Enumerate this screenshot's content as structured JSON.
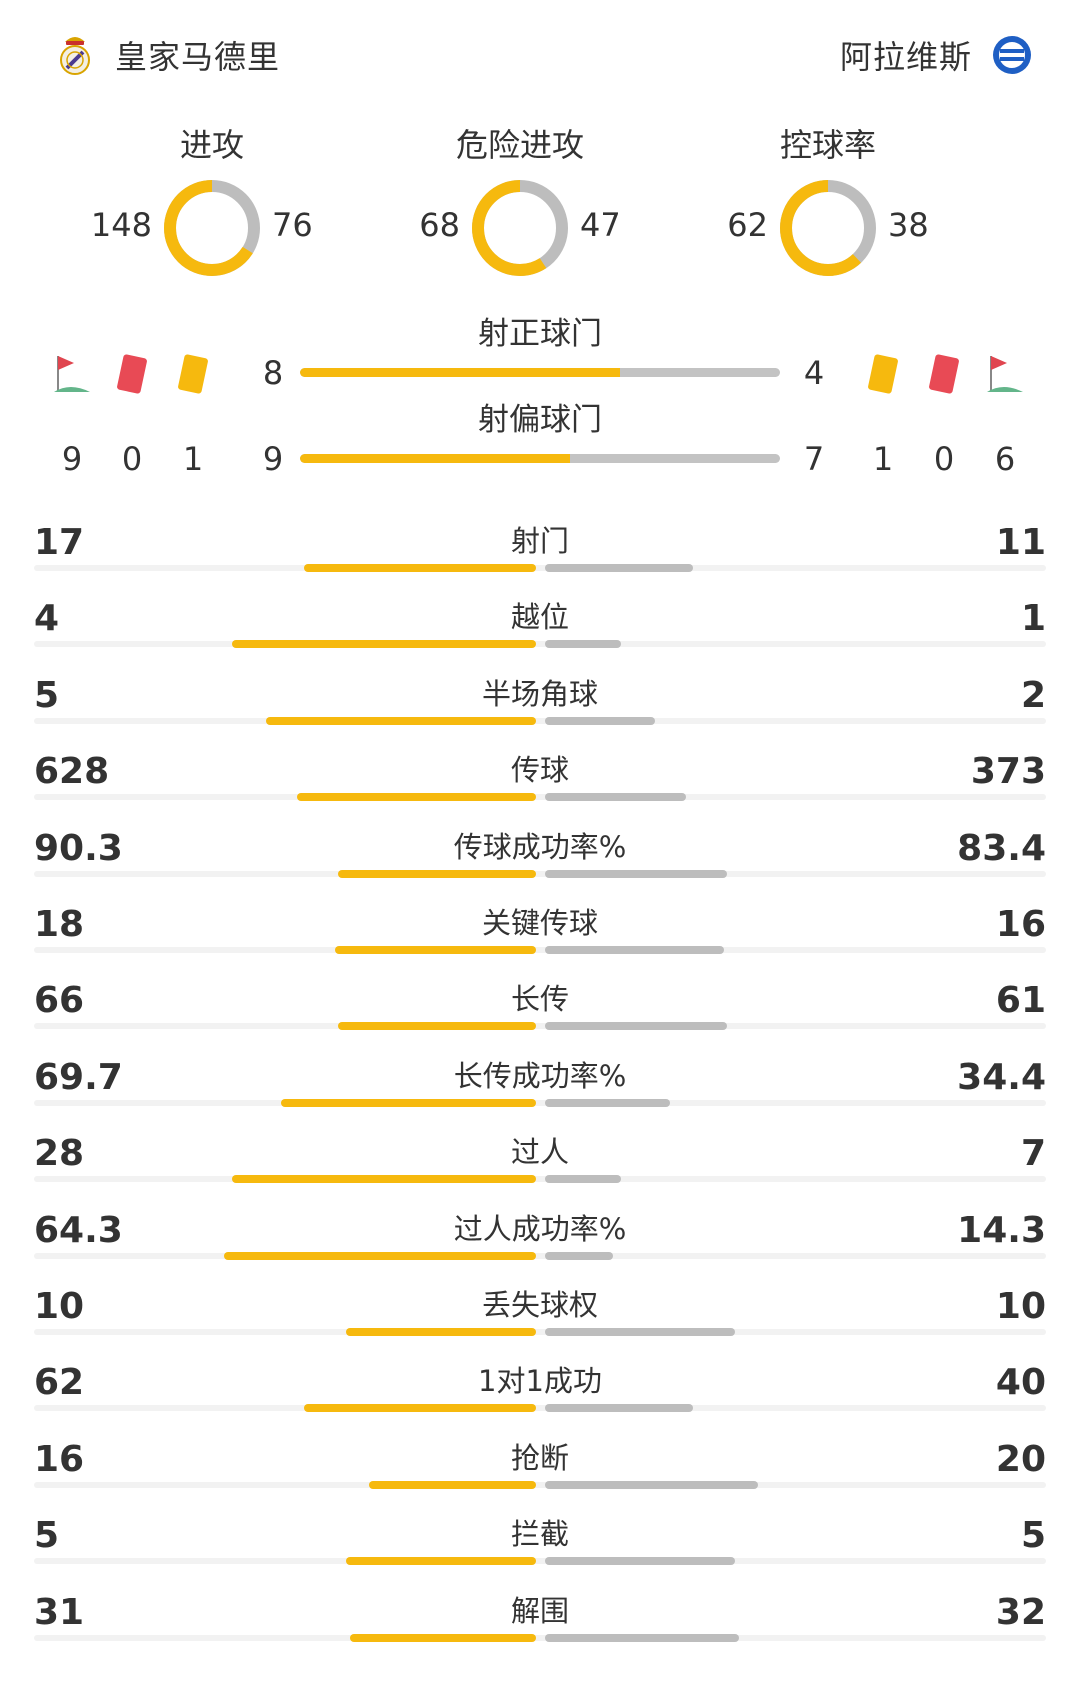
{
  "header": {
    "home_team": {
      "name": "皇家马德里",
      "icon": "real-madrid-crest-icon"
    },
    "away_team": {
      "name": "阿拉维斯",
      "icon": "alaves-crest-icon"
    }
  },
  "colors": {
    "home": "#f6b90e",
    "away": "#bdbdbd",
    "track": "#f2f2f2"
  },
  "rings": [
    {
      "title": "进攻",
      "home": "148",
      "away": "76"
    },
    {
      "title": "危险进攻",
      "home": "68",
      "away": "47"
    },
    {
      "title": "控球率",
      "home": "62",
      "away": "38"
    }
  ],
  "shots": {
    "on_target": {
      "label": "射正球门",
      "home": "8",
      "away": "4"
    },
    "off_target": {
      "label": "射偏球门",
      "home": "9",
      "away": "7"
    }
  },
  "events": {
    "home": [
      {
        "icon": "corner-flag-icon",
        "count": "9"
      },
      {
        "icon": "red-card-icon",
        "count": "0"
      },
      {
        "icon": "yellow-card-icon",
        "count": "1"
      }
    ],
    "away": [
      {
        "icon": "yellow-card-icon",
        "count": "1"
      },
      {
        "icon": "red-card-icon",
        "count": "0"
      },
      {
        "icon": "corner-flag-icon",
        "count": "6"
      }
    ]
  },
  "stats": [
    {
      "label": "射门",
      "home": "17",
      "away": "11",
      "home_share": 0.61,
      "away_share": 0.39
    },
    {
      "label": "越位",
      "home": "4",
      "away": "1",
      "home_share": 0.8,
      "away_share": 0.2
    },
    {
      "label": "半场角球",
      "home": "5",
      "away": "2",
      "home_share": 0.71,
      "away_share": 0.29
    },
    {
      "label": "传球",
      "home": "628",
      "away": "373",
      "home_share": 0.63,
      "away_share": 0.37
    },
    {
      "label": "传球成功率%",
      "home": "90.3",
      "away": "83.4",
      "home_share": 0.52,
      "away_share": 0.48
    },
    {
      "label": "关键传球",
      "home": "18",
      "away": "16",
      "home_share": 0.53,
      "away_share": 0.47
    },
    {
      "label": "长传",
      "home": "66",
      "away": "61",
      "home_share": 0.52,
      "away_share": 0.48
    },
    {
      "label": "长传成功率%",
      "home": "69.7",
      "away": "34.4",
      "home_share": 0.67,
      "away_share": 0.33
    },
    {
      "label": "过人",
      "home": "28",
      "away": "7",
      "home_share": 0.8,
      "away_share": 0.2
    },
    {
      "label": "过人成功率%",
      "home": "64.3",
      "away": "14.3",
      "home_share": 0.82,
      "away_share": 0.18
    },
    {
      "label": "丢失球权",
      "home": "10",
      "away": "10",
      "home_share": 0.5,
      "away_share": 0.5
    },
    {
      "label": "1对1成功",
      "home": "62",
      "away": "40",
      "home_share": 0.61,
      "away_share": 0.39
    },
    {
      "label": "抢断",
      "home": "16",
      "away": "20",
      "home_share": 0.44,
      "away_share": 0.56
    },
    {
      "label": "拦截",
      "home": "5",
      "away": "5",
      "home_share": 0.5,
      "away_share": 0.5
    },
    {
      "label": "解围",
      "home": "31",
      "away": "32",
      "home_share": 0.49,
      "away_share": 0.51
    }
  ]
}
